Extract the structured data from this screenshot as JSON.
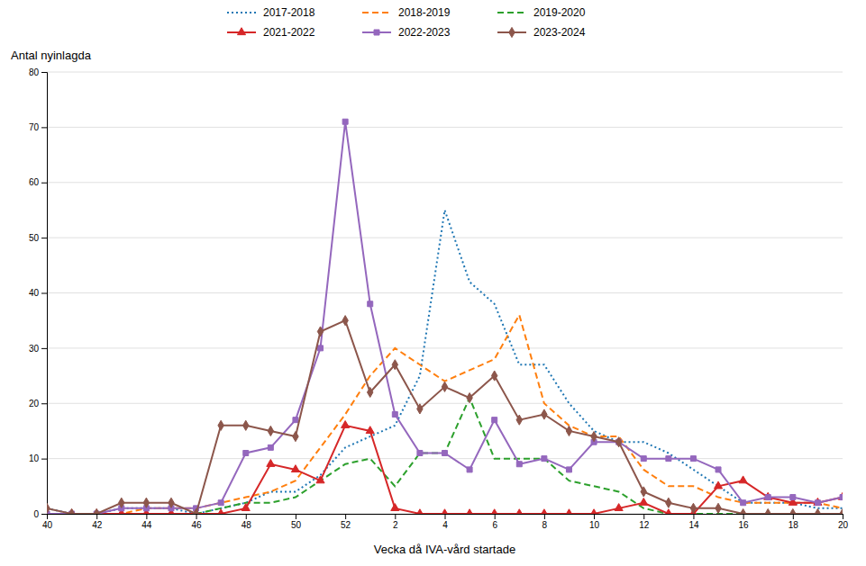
{
  "chart_data": {
    "type": "line",
    "xlabel": "Vecka då IVA-vård startade",
    "ylabel": "Antal nyinlagda",
    "categories": [
      "40",
      null,
      "42",
      null,
      "44",
      null,
      "46",
      null,
      "48",
      null,
      "50",
      null,
      "52",
      null,
      "2",
      null,
      "4",
      null,
      "6",
      null,
      "8",
      null,
      "10",
      null,
      "12",
      null,
      "14",
      null,
      "16",
      null,
      "18",
      null,
      "20"
    ],
    "ylim": [
      0,
      80
    ],
    "yticks": [
      0,
      10,
      20,
      30,
      40,
      50,
      60,
      70,
      80
    ],
    "grid": true,
    "legend": "top",
    "series": [
      {
        "name": "2017-2018",
        "line_style": "dotted",
        "values": [
          1,
          0,
          0,
          1,
          1,
          1,
          0,
          1,
          2,
          4,
          4,
          7,
          12,
          14,
          16,
          25,
          55,
          42,
          38,
          27,
          27,
          20,
          15,
          13,
          13,
          11,
          8,
          5,
          2,
          2,
          2,
          1,
          1
        ]
      },
      {
        "name": "2018-2019",
        "line_style": "dashed",
        "values": [
          0,
          0,
          0,
          0,
          1,
          1,
          1,
          2,
          3,
          4,
          6,
          12,
          18,
          25,
          30,
          27,
          24,
          26,
          28,
          36,
          20,
          16,
          14,
          14,
          8,
          5,
          5,
          3,
          2,
          2,
          2,
          2,
          1
        ]
      },
      {
        "name": "2019-2020",
        "line_style": "dashed",
        "values": [
          0,
          0,
          0,
          0,
          0,
          0,
          0,
          1,
          2,
          2,
          3,
          6,
          9,
          10,
          5,
          11,
          11,
          21,
          10,
          10,
          10,
          6,
          5,
          4,
          1,
          0,
          0,
          0,
          0,
          0,
          0,
          0,
          0
        ]
      },
      {
        "name": "2021-2022",
        "line_style": "solid",
        "marker": "triangle",
        "values": [
          0,
          0,
          0,
          0,
          0,
          0,
          0,
          0,
          1,
          9,
          8,
          6,
          16,
          15,
          1,
          0,
          0,
          0,
          0,
          0,
          0,
          0,
          0,
          1,
          2,
          0,
          0,
          5,
          6,
          3,
          2,
          2,
          3
        ]
      },
      {
        "name": "2022-2023",
        "line_style": "solid",
        "marker": "square",
        "values": [
          0,
          0,
          0,
          1,
          1,
          1,
          1,
          2,
          11,
          12,
          17,
          30,
          71,
          38,
          18,
          11,
          11,
          8,
          17,
          9,
          10,
          8,
          13,
          13,
          10,
          10,
          10,
          8,
          2,
          3,
          3,
          2,
          3
        ]
      },
      {
        "name": "2023-2024",
        "line_style": "solid",
        "marker": "diamond",
        "values": [
          1,
          0,
          0,
          2,
          2,
          2,
          0,
          16,
          16,
          15,
          14,
          33,
          35,
          22,
          27,
          19,
          23,
          21,
          25,
          17,
          18,
          15,
          14,
          13,
          4,
          2,
          1,
          1,
          0,
          0,
          0,
          0,
          0
        ]
      }
    ]
  }
}
